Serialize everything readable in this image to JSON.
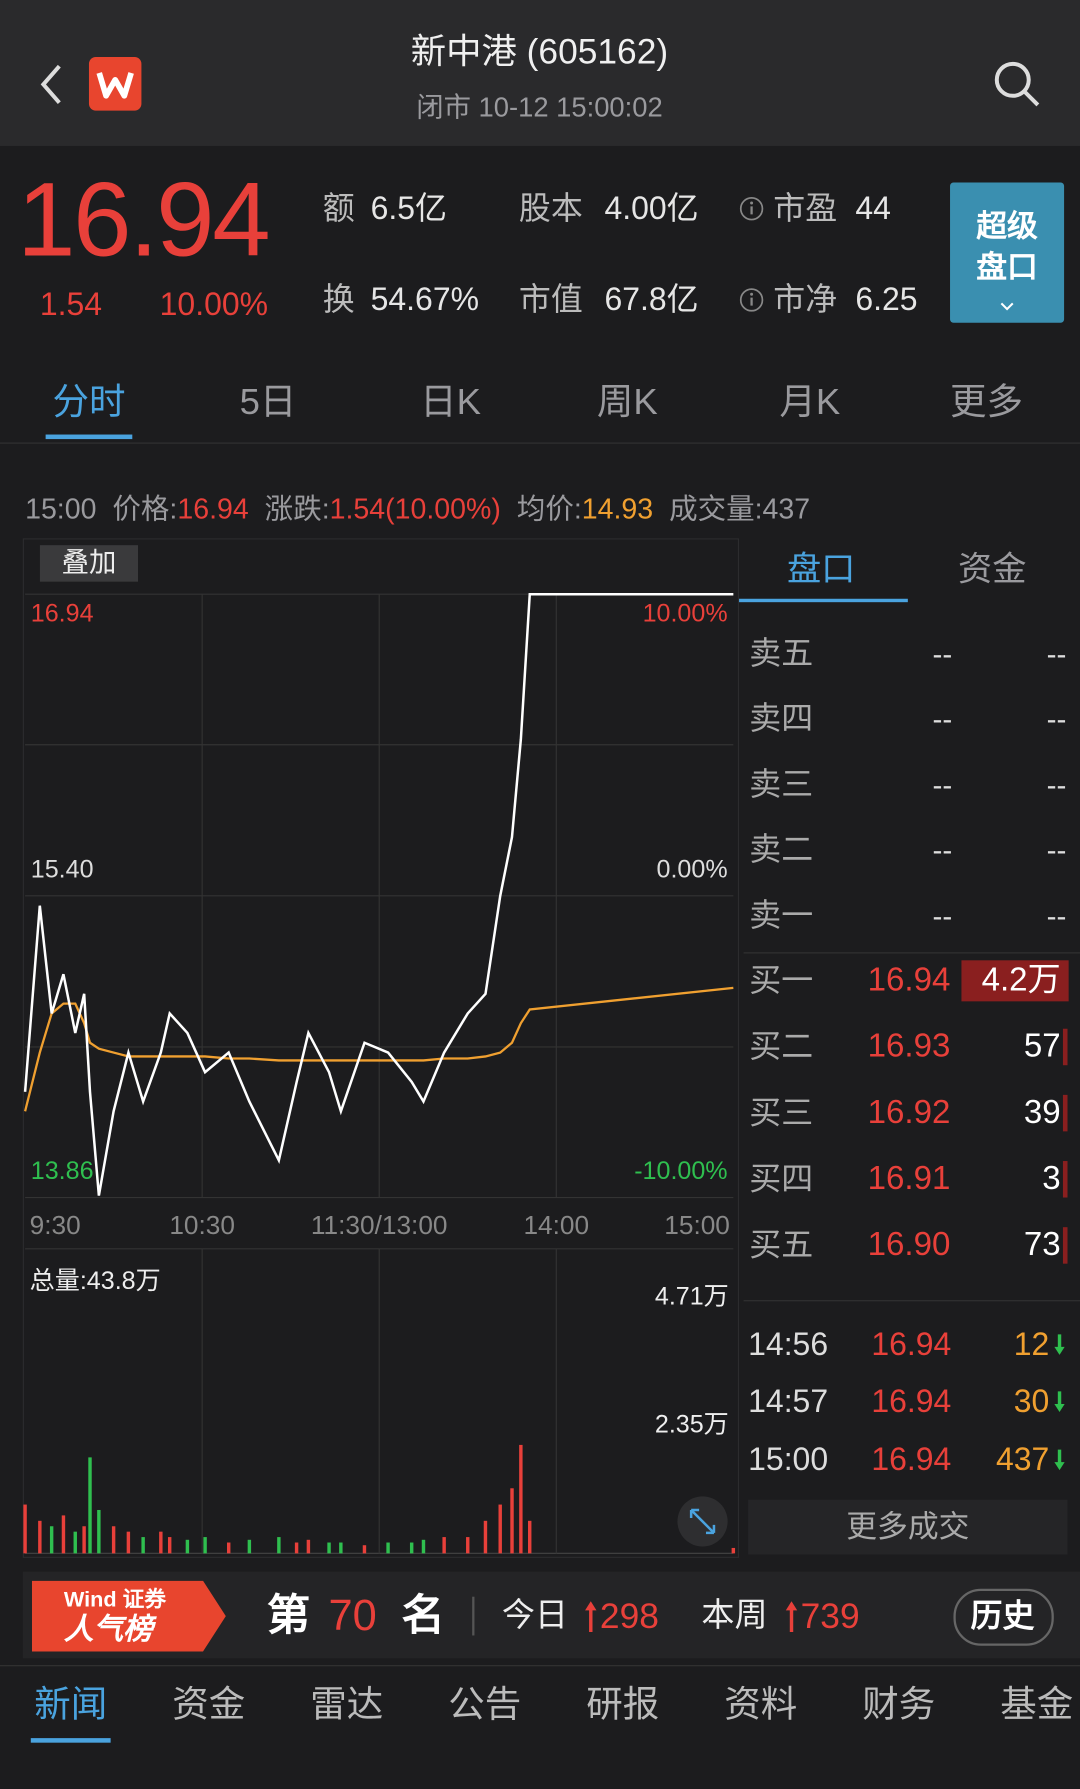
{
  "header": {
    "title": "新中港 (605162)",
    "status": "闭市 10-12 15:00:02"
  },
  "quote": {
    "price": "16.94",
    "change": "1.54",
    "percent": "10.00%",
    "stats": [
      {
        "label": "额",
        "value": "6.5亿"
      },
      {
        "label": "股本",
        "value": "4.00亿"
      },
      {
        "label": "市盈",
        "value": "44"
      },
      {
        "label": "换",
        "value": "54.67%"
      },
      {
        "label": "市值",
        "value": "67.8亿"
      },
      {
        "label": "市净",
        "value": "6.25"
      }
    ],
    "super_button": [
      "超级",
      "盘口"
    ]
  },
  "tabs": [
    "分时",
    "5日",
    "日K",
    "周K",
    "月K",
    "更多"
  ],
  "info_bar": {
    "time": "15:00",
    "items": [
      {
        "label": "价格:",
        "value": "16.94"
      },
      {
        "label": "涨跌:",
        "value": "1.54(10.00%)"
      },
      {
        "label": "均价:",
        "value": "14.93"
      },
      {
        "label": "成交量:",
        "value": "437"
      }
    ]
  },
  "overlay_button": "叠加",
  "chart_data": [
    {
      "type": "line",
      "x": [
        "9:30",
        "9:35",
        "9:39",
        "9:43",
        "9:47",
        "9:50",
        "9:52",
        "9:55",
        "10:00",
        "10:05",
        "10:10",
        "10:16",
        "10:19",
        "10:25",
        "10:31",
        "10:39",
        "10:46",
        "10:56",
        "11:02",
        "11:06",
        "11:13",
        "11:17",
        "11:25",
        "13:03",
        "13:11",
        "13:15",
        "13:22",
        "13:30",
        "13:36",
        "13:41",
        "13:45",
        "13:48",
        "13:51",
        "15:00"
      ],
      "series": [
        {
          "color": "#ffffff",
          "values": [
            14.4,
            15.35,
            14.8,
            15.0,
            14.7,
            14.9,
            14.4,
            13.87,
            14.3,
            14.6,
            14.35,
            14.6,
            14.8,
            14.7,
            14.5,
            14.6,
            14.35,
            14.05,
            14.45,
            14.7,
            14.5,
            14.3,
            14.65,
            14.6,
            14.45,
            14.35,
            14.6,
            14.8,
            14.9,
            15.4,
            15.7,
            16.2,
            16.94,
            16.94
          ]
        },
        {
          "color": "#f0a030",
          "values": [
            14.3,
            14.6,
            14.8,
            14.85,
            14.85,
            14.75,
            14.65,
            14.62,
            14.6,
            14.58,
            14.58,
            14.58,
            14.58,
            14.58,
            14.58,
            14.57,
            14.57,
            14.56,
            14.56,
            14.56,
            14.56,
            14.56,
            14.56,
            14.56,
            14.56,
            14.56,
            14.57,
            14.57,
            14.58,
            14.6,
            14.65,
            14.75,
            14.82,
            14.93
          ]
        }
      ],
      "ylim": [
        13.86,
        16.94
      ],
      "yticks": [
        16.94,
        {
          "value": 15.4,
          "label": "15.40"
        },
        13.86
      ],
      "y2lim": [
        -10,
        10
      ],
      "y2ticks": [
        {
          "value": 10,
          "label": "10.00%"
        },
        {
          "value": 0,
          "label": "0.00%"
        },
        {
          "value": -10,
          "label": "-10.00%"
        }
      ],
      "xticks": [
        "9:30",
        "10:30",
        "11:30/13:00",
        "14:00",
        "15:00"
      ],
      "grid": true
    },
    {
      "type": "bar",
      "title": "总量:43.8万",
      "x": [
        "9:30",
        "9:35",
        "9:39",
        "9:43",
        "9:47",
        "9:50",
        "9:52",
        "9:55",
        "10:00",
        "10:05",
        "10:10",
        "10:16",
        "10:19",
        "10:25",
        "10:31",
        "10:39",
        "10:46",
        "10:56",
        "11:02",
        "11:06",
        "11:13",
        "11:17",
        "11:25",
        "13:03",
        "13:11",
        "13:15",
        "13:22",
        "13:30",
        "13:36",
        "13:41",
        "13:45",
        "13:48",
        "13:51",
        "15:00"
      ],
      "values": [
        0.9,
        0.6,
        0.5,
        0.7,
        0.4,
        0.5,
        1.77,
        0.8,
        0.5,
        0.4,
        0.3,
        0.4,
        0.3,
        0.25,
        0.3,
        0.2,
        0.25,
        0.3,
        0.2,
        0.25,
        0.2,
        0.2,
        0.15,
        0.2,
        0.2,
        0.25,
        0.3,
        0.3,
        0.6,
        0.9,
        1.2,
        2.0,
        0.6,
        0.1
      ],
      "colors": [
        "#e8403a",
        "#e8403a",
        "#2fbf4f",
        "#e8403a",
        "#2fbf4f",
        "#e8403a",
        "#2fbf4f",
        "#2fbf4f",
        "#e8403a",
        "#e8403a",
        "#2fbf4f",
        "#e8403a",
        "#e8403a",
        "#2fbf4f",
        "#2fbf4f",
        "#e8403a",
        "#2fbf4f",
        "#2fbf4f",
        "#e8403a",
        "#e8403a",
        "#2fbf4f",
        "#2fbf4f",
        "#e8403a",
        "#2fbf4f",
        "#2fbf4f",
        "#2fbf4f",
        "#e8403a",
        "#e8403a",
        "#e8403a",
        "#e8403a",
        "#e8403a",
        "#e8403a",
        "#e8403a",
        "#e8403a"
      ],
      "ylim": [
        0,
        5.3
      ],
      "yticks": [
        {
          "value": 4.71,
          "label": "4.71万"
        },
        {
          "value": 2.35,
          "label": "2.35万"
        }
      ]
    }
  ],
  "order_book": {
    "tabs": [
      "盘口",
      "资金"
    ],
    "asks": [
      {
        "label": "卖五",
        "price": "--",
        "volume": "--"
      },
      {
        "label": "卖四",
        "price": "--",
        "volume": "--"
      },
      {
        "label": "卖三",
        "price": "--",
        "volume": "--"
      },
      {
        "label": "卖二",
        "price": "--",
        "volume": "--"
      },
      {
        "label": "卖一",
        "price": "--",
        "volume": "--"
      }
    ],
    "bids": [
      {
        "label": "买一",
        "price": "16.94",
        "volume": "4.2万"
      },
      {
        "label": "买二",
        "price": "16.93",
        "volume": "57"
      },
      {
        "label": "买三",
        "price": "16.92",
        "volume": "39"
      },
      {
        "label": "买四",
        "price": "16.91",
        "volume": "3"
      },
      {
        "label": "买五",
        "price": "16.90",
        "volume": "73"
      }
    ],
    "trades": [
      {
        "time": "14:56",
        "price": "16.94",
        "volume": "12"
      },
      {
        "time": "14:57",
        "price": "16.94",
        "volume": "30"
      },
      {
        "time": "15:00",
        "price": "16.94",
        "volume": "437"
      }
    ],
    "more": "更多成交"
  },
  "rank_banner": {
    "brand": "Wind 证券",
    "name": "人气榜",
    "rank_prefix": "第",
    "rank": "70",
    "rank_suffix": "名",
    "today_label": "今日",
    "today": "298",
    "week_label": "本周",
    "week": "739",
    "history": "历史"
  },
  "bottom_tabs": [
    "新闻",
    "资金",
    "雷达",
    "公告",
    "研报",
    "资料",
    "财务",
    "基金"
  ]
}
